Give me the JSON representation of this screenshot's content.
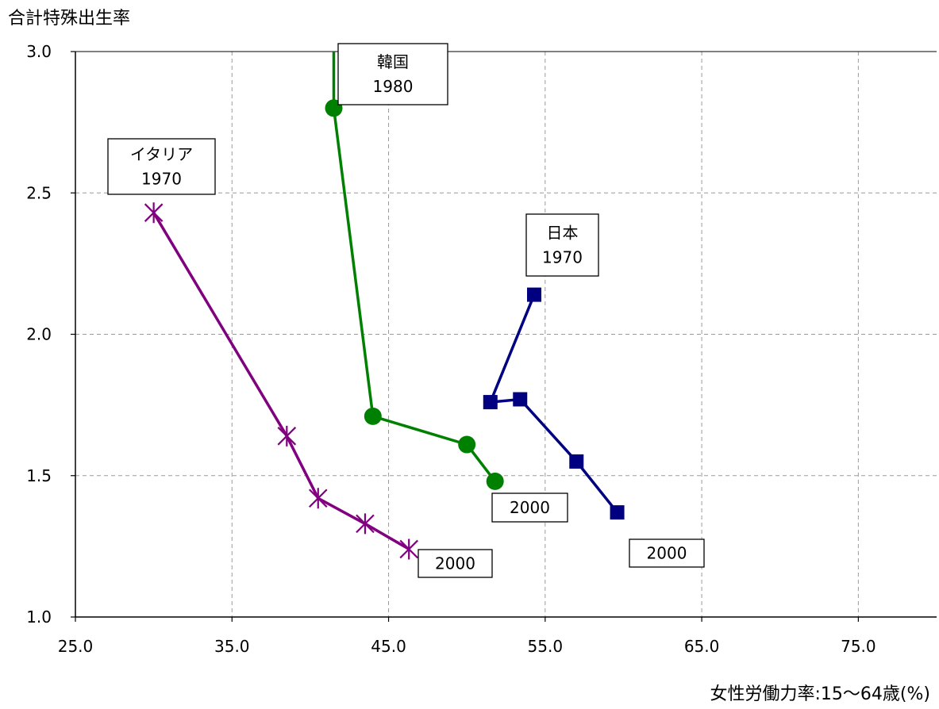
{
  "chart_data": {
    "type": "line",
    "ylabel": "合計特殊出生率",
    "xlabel": "女性労働力率:15〜64歳(%)",
    "xlim": [
      25,
      80
    ],
    "ylim": [
      1.0,
      3.0
    ],
    "x_ticks": [
      "25.0",
      "35.0",
      "45.0",
      "55.0",
      "65.0",
      "75.0"
    ],
    "y_ticks": [
      "1.0",
      "1.5",
      "2.0",
      "2.5",
      "3.0"
    ],
    "grid": true,
    "series": [
      {
        "name": "イタリア",
        "color": "#800080",
        "marker": "star",
        "points": [
          [
            30.0,
            2.43
          ],
          [
            38.5,
            1.64
          ],
          [
            40.5,
            1.42
          ],
          [
            43.5,
            1.33
          ],
          [
            46.3,
            1.24
          ]
        ],
        "start_label": [
          "イタリア",
          "1970"
        ],
        "end_label": [
          "2000"
        ]
      },
      {
        "name": "韓国",
        "color": "#008000",
        "marker": "circle",
        "points": [
          [
            41.5,
            3.3
          ],
          [
            41.5,
            2.8
          ],
          [
            44.0,
            1.71
          ],
          [
            50.0,
            1.61
          ],
          [
            51.8,
            1.48
          ]
        ],
        "marker_from": 1,
        "start_label": [
          "韓国",
          "1980"
        ],
        "end_label": [
          "2000"
        ]
      },
      {
        "name": "日本",
        "color": "#000080",
        "marker": "square",
        "points": [
          [
            54.3,
            2.14
          ],
          [
            51.5,
            1.76
          ],
          [
            53.4,
            1.77
          ],
          [
            57.0,
            1.55
          ],
          [
            59.6,
            1.37
          ]
        ],
        "start_label": [
          "日本",
          "1970"
        ],
        "end_label": [
          "2000"
        ]
      }
    ]
  }
}
